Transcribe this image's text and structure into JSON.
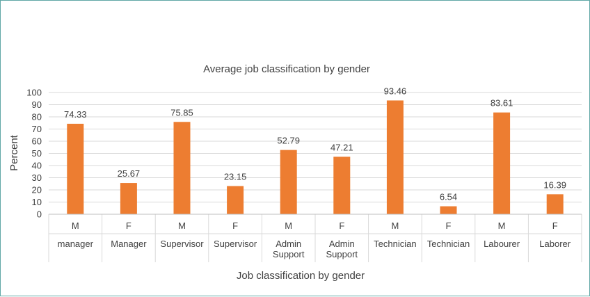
{
  "chart_data": {
    "type": "bar",
    "title": "Average job classification by gender",
    "xlabel": "Job classification by gender",
    "ylabel": "Percent",
    "ylim": [
      0,
      100
    ],
    "yticks": [
      0,
      10,
      20,
      30,
      40,
      50,
      60,
      70,
      80,
      90,
      100
    ],
    "grid": true,
    "legend": "none",
    "bar_color": "#ed7d31",
    "categories": [
      {
        "gender": "M",
        "label": [
          "manager"
        ]
      },
      {
        "gender": "F",
        "label": [
          "Manager"
        ]
      },
      {
        "gender": "M",
        "label": [
          "Supervisor"
        ]
      },
      {
        "gender": "F",
        "label": [
          "Supervisor"
        ]
      },
      {
        "gender": "M",
        "label": [
          "Admin",
          "Support"
        ]
      },
      {
        "gender": "F",
        "label": [
          "Admin",
          "Support"
        ]
      },
      {
        "gender": "M",
        "label": [
          "Technician"
        ]
      },
      {
        "gender": "F",
        "label": [
          "Technician"
        ]
      },
      {
        "gender": "M",
        "label": [
          "Labourer"
        ]
      },
      {
        "gender": "F",
        "label": [
          "Laborer"
        ]
      }
    ],
    "values": [
      74.33,
      25.67,
      75.85,
      23.15,
      52.79,
      47.21,
      93.46,
      6.54,
      83.61,
      16.39
    ],
    "data_labels": [
      "74.33",
      "25.67",
      "75.85",
      "23.15",
      "52.79",
      "47.21",
      "93.46",
      "6.54",
      "83.61",
      "16.39"
    ]
  }
}
